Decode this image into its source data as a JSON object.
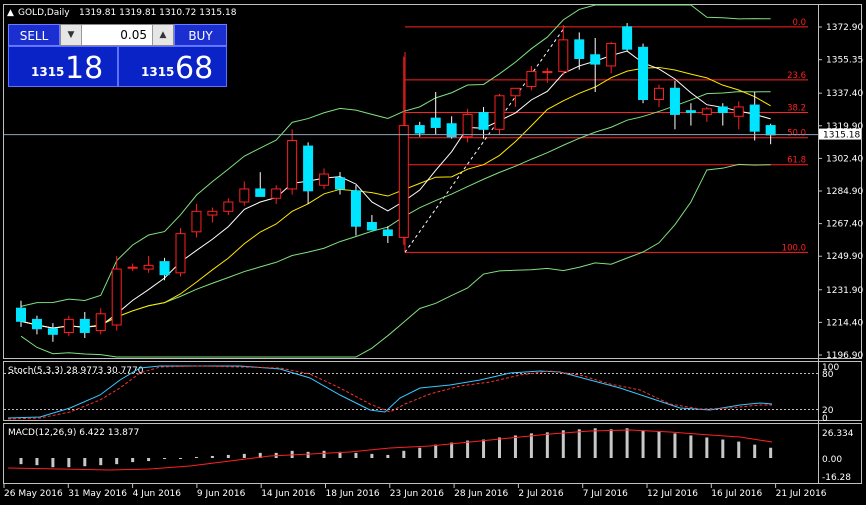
{
  "header": {
    "symbol": "GOLD,Daily",
    "ohlc": "1319.81 1319.81 1310.72 1315.18"
  },
  "trade_panel": {
    "sell_label": "SELL",
    "buy_label": "BUY",
    "lot_value": "0.05",
    "sell_price_small": "1315",
    "sell_price_big": "18",
    "buy_price_small": "1315",
    "buy_price_big": "68"
  },
  "price_axis": {
    "labels": [
      "1372.90",
      "1355.35",
      "1337.40",
      "1319.90",
      "1302.40",
      "1284.90",
      "1267.40",
      "1249.90",
      "1231.90",
      "1214.40",
      "1196.90"
    ],
    "current_price": "1315.18"
  },
  "fibonacci": {
    "levels": [
      {
        "label": "0.0",
        "price": 1373.0
      },
      {
        "label": "23.6",
        "price": 1344.5
      },
      {
        "label": "38.2",
        "price": 1327.0
      },
      {
        "label": "50.0",
        "price": 1313.5
      },
      {
        "label": "61.8",
        "price": 1299.0
      },
      {
        "label": "100.0",
        "price": 1252.0
      }
    ]
  },
  "stoch": {
    "title": "Stoch(5,3,3) 28.9773 30.7770",
    "scale_labels": [
      "100",
      "80",
      "20",
      "0"
    ]
  },
  "macd": {
    "title": "MACD(12,26,9) 6.422 13.877",
    "scale_labels": [
      "26.334",
      "0.00",
      "-16.28"
    ]
  },
  "date_axis": {
    "labels": [
      "26 May 2016",
      "31 May 2016",
      "4 Jun 2016",
      "9 Jun 2016",
      "14 Jun 2016",
      "18 Jun 2016",
      "23 Jun 2016",
      "28 Jun 2016",
      "2 Jul 2016",
      "7 Jul 2016",
      "12 Jul 2016",
      "16 Jul 2016",
      "21 Jul 2016"
    ]
  },
  "colors": {
    "bull": "#000000",
    "bull_border": "#ff2020",
    "bear": "#00e5ff",
    "bollinger": "#7fe07f",
    "ma_fast": "#ffffff",
    "ma_slow": "#ffe600",
    "fib": "#ff2020",
    "current_price_line": "#8fa6b8"
  },
  "chart_data": {
    "type": "candlestick",
    "candles": [
      {
        "o": 1222,
        "h": 1226,
        "l": 1212,
        "c": 1215
      },
      {
        "o": 1216,
        "h": 1218,
        "l": 1208,
        "c": 1211
      },
      {
        "o": 1211,
        "h": 1214,
        "l": 1204,
        "c": 1208
      },
      {
        "o": 1209,
        "h": 1218,
        "l": 1207,
        "c": 1216
      },
      {
        "o": 1216,
        "h": 1220,
        "l": 1206,
        "c": 1209
      },
      {
        "o": 1210,
        "h": 1222,
        "l": 1208,
        "c": 1219
      },
      {
        "o": 1213,
        "h": 1250,
        "l": 1210,
        "c": 1243
      },
      {
        "o": 1244,
        "h": 1246,
        "l": 1242,
        "c": 1244
      },
      {
        "o": 1243,
        "h": 1250,
        "l": 1241,
        "c": 1245
      },
      {
        "o": 1247,
        "h": 1249,
        "l": 1237,
        "c": 1240
      },
      {
        "o": 1241,
        "h": 1265,
        "l": 1239,
        "c": 1262
      },
      {
        "o": 1263,
        "h": 1278,
        "l": 1260,
        "c": 1274
      },
      {
        "o": 1272,
        "h": 1276,
        "l": 1268,
        "c": 1274
      },
      {
        "o": 1274,
        "h": 1281,
        "l": 1272,
        "c": 1279
      },
      {
        "o": 1279,
        "h": 1290,
        "l": 1277,
        "c": 1286
      },
      {
        "o": 1286,
        "h": 1295,
        "l": 1282,
        "c": 1282
      },
      {
        "o": 1281,
        "h": 1288,
        "l": 1278,
        "c": 1286
      },
      {
        "o": 1286,
        "h": 1318,
        "l": 1283,
        "c": 1312
      },
      {
        "o": 1309,
        "h": 1311,
        "l": 1278,
        "c": 1285
      },
      {
        "o": 1288,
        "h": 1297,
        "l": 1286,
        "c": 1294
      },
      {
        "o": 1292,
        "h": 1295,
        "l": 1283,
        "c": 1286
      },
      {
        "o": 1285,
        "h": 1288,
        "l": 1261,
        "c": 1266
      },
      {
        "o": 1268,
        "h": 1272,
        "l": 1264,
        "c": 1264
      },
      {
        "o": 1264,
        "h": 1266,
        "l": 1257,
        "c": 1261
      },
      {
        "o": 1260,
        "h": 1357,
        "l": 1256,
        "c": 1320
      },
      {
        "o": 1320,
        "h": 1322,
        "l": 1314,
        "c": 1316
      },
      {
        "o": 1324,
        "h": 1338,
        "l": 1315,
        "c": 1319
      },
      {
        "o": 1321,
        "h": 1325,
        "l": 1313,
        "c": 1314
      },
      {
        "o": 1314,
        "h": 1329,
        "l": 1311,
        "c": 1326
      },
      {
        "o": 1327,
        "h": 1330,
        "l": 1313,
        "c": 1318
      },
      {
        "o": 1318,
        "h": 1337,
        "l": 1315,
        "c": 1336
      },
      {
        "o": 1336,
        "h": 1340,
        "l": 1330,
        "c": 1340
      },
      {
        "o": 1341,
        "h": 1352,
        "l": 1339,
        "c": 1349
      },
      {
        "o": 1349,
        "h": 1351,
        "l": 1343,
        "c": 1349
      },
      {
        "o": 1349,
        "h": 1374,
        "l": 1347,
        "c": 1366
      },
      {
        "o": 1366,
        "h": 1370,
        "l": 1350,
        "c": 1356
      },
      {
        "o": 1358,
        "h": 1367,
        "l": 1338,
        "c": 1353
      },
      {
        "o": 1352,
        "h": 1365,
        "l": 1348,
        "c": 1364
      },
      {
        "o": 1373,
        "h": 1375,
        "l": 1360,
        "c": 1361
      },
      {
        "o": 1362,
        "h": 1364,
        "l": 1332,
        "c": 1334
      },
      {
        "o": 1334,
        "h": 1342,
        "l": 1330,
        "c": 1340
      },
      {
        "o": 1340,
        "h": 1344,
        "l": 1318,
        "c": 1326
      },
      {
        "o": 1328,
        "h": 1332,
        "l": 1320,
        "c": 1327
      },
      {
        "o": 1326,
        "h": 1330,
        "l": 1322,
        "c": 1329
      },
      {
        "o": 1330,
        "h": 1332,
        "l": 1320,
        "c": 1327
      },
      {
        "o": 1325,
        "h": 1333,
        "l": 1318,
        "c": 1330
      },
      {
        "o": 1331,
        "h": 1338,
        "l": 1312,
        "c": 1317
      },
      {
        "o": 1320,
        "h": 1321,
        "l": 1310,
        "c": 1315
      }
    ],
    "macd_histogram": [
      -6,
      -7,
      -9,
      -9,
      -8,
      -7,
      -6,
      -4,
      -3,
      -1,
      0,
      1,
      2,
      3,
      4,
      5,
      5,
      7,
      6,
      7,
      6,
      5,
      4,
      3,
      7,
      10,
      13,
      15,
      17,
      18,
      20,
      22,
      24,
      25,
      27,
      28,
      29,
      28,
      29,
      27,
      26,
      24,
      22,
      20,
      18,
      16,
      13,
      10
    ],
    "ylim": [
      1196.9,
      1380
    ]
  }
}
